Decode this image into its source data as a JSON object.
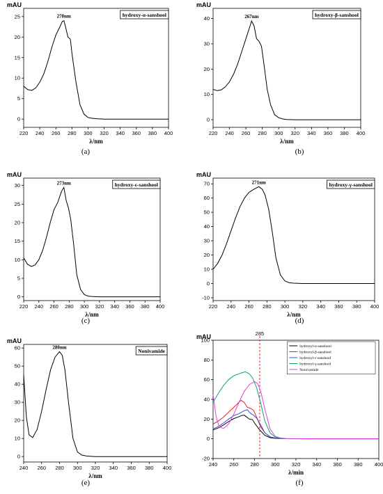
{
  "chart_data": [
    {
      "type": "line",
      "ylabel": "mAU",
      "xlabel": "λ/nm",
      "legend": "hydroxy-α-sanshool",
      "peak_label": "270nm",
      "caption": "(a)",
      "xlim": [
        220,
        400
      ],
      "ylim": [
        -2,
        27
      ],
      "xticks": [
        "220",
        "240",
        "260",
        "280",
        "300",
        "320",
        "340",
        "360",
        "380",
        "400"
      ],
      "yticks": [
        "0",
        "5",
        "10",
        "15",
        "20",
        "25"
      ],
      "series": [
        {
          "color": "#000000",
          "x": [
            220,
            225,
            230,
            235,
            240,
            245,
            250,
            255,
            260,
            265,
            268,
            270,
            272,
            275,
            278,
            280,
            285,
            290,
            295,
            300,
            305,
            310,
            320,
            340,
            360,
            380,
            400
          ],
          "y": [
            8,
            7.2,
            7,
            7.6,
            9,
            11,
            14,
            17.5,
            20.5,
            22.5,
            23.8,
            24,
            22.5,
            20,
            19.5,
            16,
            9,
            3.5,
            1.2,
            0.4,
            0.2,
            0.1,
            0,
            0,
            0,
            0,
            0
          ]
        }
      ]
    },
    {
      "type": "line",
      "ylabel": "mAU",
      "xlabel": "λ/nm",
      "legend": "hydroxy-β-sanshool",
      "peak_label": "267nm",
      "caption": "(b)",
      "xlim": [
        220,
        400
      ],
      "ylim": [
        -3,
        44
      ],
      "xticks": [
        "220",
        "240",
        "260",
        "280",
        "300",
        "320",
        "340",
        "360",
        "380",
        "400"
      ],
      "yticks": [
        "0",
        "10",
        "20",
        "30",
        "40"
      ],
      "series": [
        {
          "color": "#000000",
          "x": [
            220,
            225,
            230,
            235,
            240,
            245,
            250,
            255,
            260,
            264,
            267,
            270,
            273,
            276,
            279,
            282,
            286,
            290,
            295,
            300,
            305,
            310,
            320,
            340,
            360,
            380,
            400
          ],
          "y": [
            12,
            11.5,
            11.8,
            13,
            15,
            18,
            22,
            27,
            32,
            36,
            39,
            37,
            32,
            31,
            29,
            22,
            12,
            6,
            2,
            0.8,
            0.3,
            0.1,
            0,
            0,
            0,
            0,
            0
          ]
        }
      ]
    },
    {
      "type": "line",
      "ylabel": "mAU",
      "xlabel": "λ/nm",
      "legend": "hydroxy-ε-sanshool",
      "peak_label": "273nm",
      "caption": "(c)",
      "xlim": [
        220,
        400
      ],
      "ylim": [
        -1,
        32
      ],
      "xticks": [
        "220",
        "240",
        "260",
        "280",
        "300",
        "320",
        "340",
        "360",
        "380",
        "400"
      ],
      "yticks": [
        "0",
        "5",
        "10",
        "15",
        "20",
        "25",
        "30"
      ],
      "series": [
        {
          "color": "#000000",
          "x": [
            220,
            225,
            230,
            235,
            240,
            245,
            250,
            255,
            260,
            265,
            270,
            273,
            276,
            279,
            282,
            286,
            290,
            295,
            300,
            305,
            310,
            320,
            340,
            360,
            380,
            400
          ],
          "y": [
            10.5,
            8.8,
            8.2,
            8.6,
            10,
            12.5,
            16,
            20,
            23.5,
            25.5,
            28.5,
            29.5,
            26,
            24,
            21,
            14,
            6,
            2,
            0.6,
            0.2,
            0.1,
            0,
            0,
            0,
            0,
            0
          ]
        }
      ]
    },
    {
      "type": "line",
      "ylabel": "mAU",
      "xlabel": "λ/nm",
      "legend": "hydroxy-γ-sanshool",
      "peak_label": "271nm",
      "caption": "(d)",
      "xlim": [
        220,
        400
      ],
      "ylim": [
        -12,
        74
      ],
      "xticks": [
        "220",
        "240",
        "260",
        "280",
        "300",
        "320",
        "340",
        "360",
        "380",
        "400"
      ],
      "yticks": [
        "-10",
        "0",
        "10",
        "20",
        "30",
        "40",
        "50",
        "60",
        "70"
      ],
      "series": [
        {
          "color": "#000000",
          "x": [
            220,
            225,
            230,
            235,
            240,
            245,
            250,
            255,
            260,
            265,
            268,
            271,
            275,
            278,
            282,
            286,
            290,
            295,
            300,
            305,
            310,
            320,
            340,
            360,
            380,
            400
          ],
          "y": [
            10,
            14,
            20,
            28,
            37,
            46,
            54,
            60,
            64,
            66,
            67,
            68,
            66,
            62,
            52,
            36,
            18,
            6,
            1.8,
            0.5,
            0.2,
            0,
            0,
            0,
            0,
            0
          ]
        }
      ]
    },
    {
      "type": "line",
      "ylabel": "mAU",
      "xlabel": "λ/nm",
      "legend": "Nonivamide",
      "peak_label": "280nm",
      "caption": "(e)",
      "xlim": [
        240,
        400
      ],
      "ylim": [
        -3,
        62
      ],
      "xticks": [
        "240",
        "260",
        "280",
        "300",
        "320",
        "340",
        "360",
        "380",
        "400"
      ],
      "yticks": [
        "0",
        "10",
        "20",
        "30",
        "40",
        "50",
        "60"
      ],
      "series": [
        {
          "color": "#000000",
          "x": [
            240,
            243,
            246,
            250,
            255,
            260,
            265,
            270,
            275,
            280,
            283,
            286,
            290,
            295,
            300,
            305,
            310,
            320,
            340,
            360,
            380,
            400
          ],
          "y": [
            45,
            22,
            12,
            10.5,
            15,
            25,
            37,
            48,
            55,
            58,
            56,
            48,
            30,
            10,
            2.5,
            0.8,
            0.3,
            0,
            0,
            0,
            0,
            0
          ]
        }
      ]
    },
    {
      "type": "line",
      "ylabel": "mAU",
      "xlabel": "λ/min",
      "caption": "(f)",
      "xlim": [
        240,
        400
      ],
      "ylim": [
        -20,
        100
      ],
      "xticks": [
        "240",
        "260",
        "280",
        "300",
        "320",
        "340",
        "360",
        "380",
        "400"
      ],
      "yticks": [
        "-20",
        "0",
        "20",
        "40",
        "60",
        "80",
        "100"
      ],
      "annotation": {
        "x": 285,
        "label": "285",
        "color": "#e03030"
      },
      "series": [
        {
          "name": "hydroxyl-α-sanshool",
          "color": "#000000",
          "x": [
            240,
            245,
            250,
            255,
            260,
            265,
            268,
            270,
            272,
            275,
            278,
            280,
            285,
            290,
            295,
            300,
            310,
            340,
            370,
            400
          ],
          "y": [
            9,
            11,
            14,
            17.5,
            20.5,
            22.5,
            23.8,
            24,
            22.5,
            20,
            19.5,
            16,
            9,
            3.5,
            1.2,
            0.4,
            0.1,
            0,
            0,
            0
          ]
        },
        {
          "name": "hydroxyl-β-sanshool",
          "color": "#e02020",
          "x": [
            240,
            245,
            250,
            255,
            260,
            264,
            267,
            270,
            273,
            276,
            279,
            282,
            286,
            290,
            295,
            300,
            310,
            340,
            370,
            400
          ],
          "y": [
            15,
            18,
            22,
            27,
            32,
            36,
            39,
            37,
            32,
            31,
            29,
            22,
            12,
            6,
            2,
            0.8,
            0.1,
            0,
            0,
            0
          ]
        },
        {
          "name": "hydroxyl-ε-sanshool",
          "color": "#3050e0",
          "x": [
            240,
            245,
            250,
            255,
            260,
            265,
            270,
            273,
            276,
            279,
            282,
            286,
            290,
            295,
            300,
            310,
            340,
            370,
            400
          ],
          "y": [
            10,
            12.5,
            16,
            20,
            23.5,
            25.5,
            28.5,
            29.5,
            26,
            24,
            21,
            14,
            6,
            2,
            0.6,
            0.1,
            0,
            0,
            0
          ]
        },
        {
          "name": "hydroxyl-γ-sanshool",
          "color": "#10a070",
          "x": [
            240,
            245,
            250,
            255,
            260,
            265,
            268,
            271,
            275,
            278,
            282,
            286,
            290,
            295,
            300,
            305,
            310,
            340,
            370,
            400
          ],
          "y": [
            37,
            46,
            54,
            60,
            64,
            66,
            67,
            68,
            66,
            62,
            52,
            36,
            18,
            6,
            1.8,
            0.5,
            0.2,
            0,
            0,
            0
          ]
        },
        {
          "name": "Nonivamide",
          "color": "#e040e0",
          "x": [
            240,
            243,
            246,
            250,
            255,
            260,
            265,
            270,
            275,
            280,
            283,
            286,
            290,
            295,
            300,
            305,
            310,
            340,
            370,
            400
          ],
          "y": [
            45,
            22,
            12,
            10.5,
            15,
            25,
            37,
            48,
            55,
            58,
            56,
            48,
            30,
            10,
            2.5,
            0.8,
            0.3,
            0,
            0,
            0
          ]
        }
      ]
    }
  ]
}
